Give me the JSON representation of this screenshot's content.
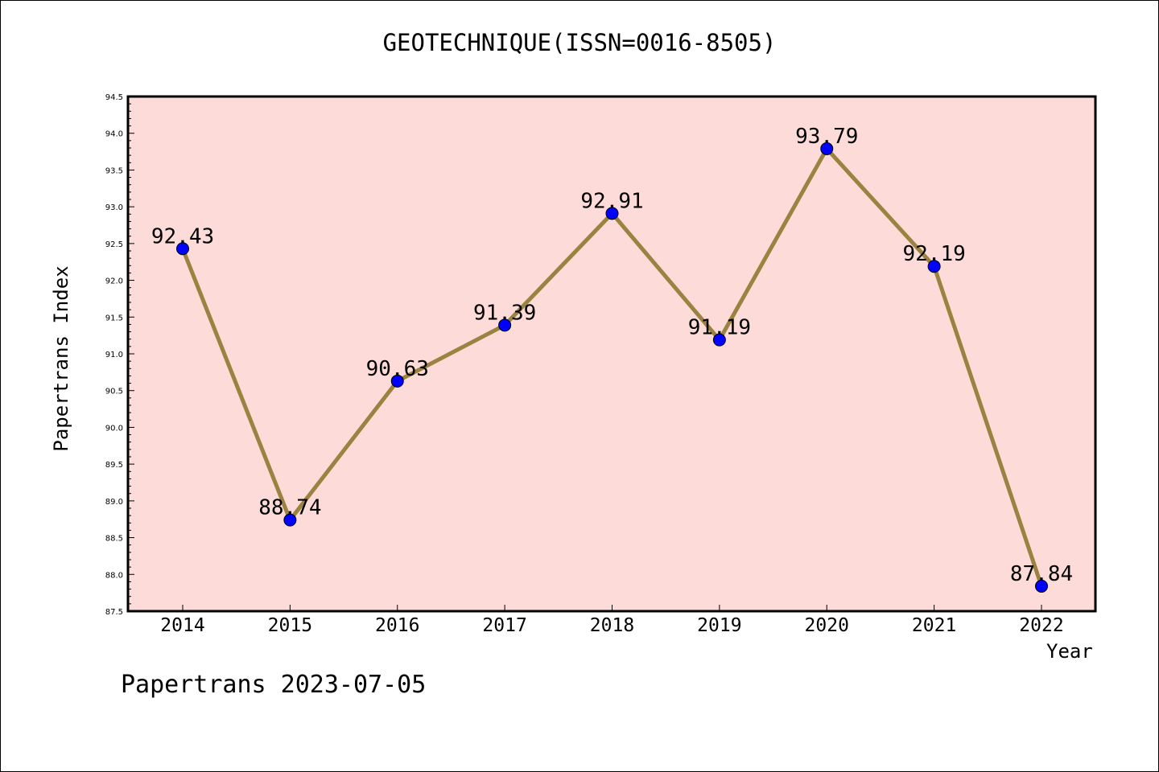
{
  "chart_data": {
    "type": "line",
    "title": "GEOTECHNIQUE(ISSN=0016-8505)",
    "xlabel": "Year",
    "ylabel": "Papertrans Index",
    "x": [
      "2014",
      "2015",
      "2016",
      "2017",
      "2018",
      "2019",
      "2020",
      "2021",
      "2022"
    ],
    "values": [
      92.43,
      88.74,
      90.63,
      91.39,
      92.91,
      91.19,
      93.79,
      92.19,
      87.84
    ],
    "data_labels": [
      "92.43",
      "88.74",
      "90.63",
      "91.39",
      "92.91",
      "91.19",
      "93.79",
      "92.19",
      "87.84"
    ],
    "ylim": [
      87.5,
      94.5
    ],
    "y_ticks": [
      "87.5",
      "88.0",
      "88.5",
      "89.0",
      "89.5",
      "90.0",
      "90.5",
      "91.0",
      "91.5",
      "92.0",
      "92.5",
      "93.0",
      "93.5",
      "94.0",
      "94.5"
    ],
    "grid": false,
    "legend": "none",
    "colors": {
      "plot_background": "#fddbd8",
      "line": "#9a8240",
      "marker": "#0000ff"
    }
  },
  "footer": "Papertrans 2023-07-05"
}
